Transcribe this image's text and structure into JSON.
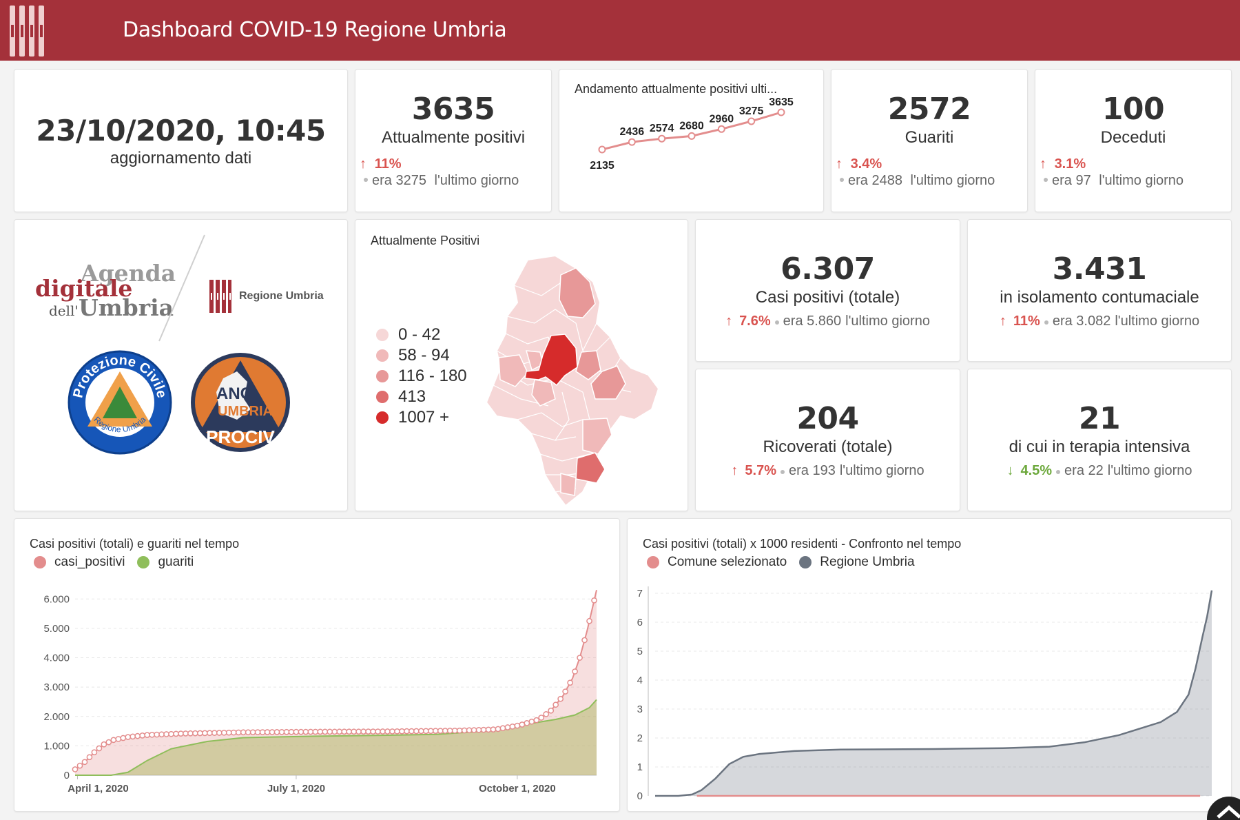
{
  "header": {
    "title": "Dashboard COVID-19 Regione Umbria"
  },
  "update": {
    "datetime": "23/10/2020, 10:45",
    "label": "aggiornamento dati"
  },
  "kpis": {
    "positivi": {
      "value": "3635",
      "label": "Attualmente positivi",
      "delta": "11%",
      "prev": "era 3275",
      "period": "l'ultimo giorno"
    },
    "guariti": {
      "value": "2572",
      "label": "Guariti",
      "delta": "3.4%",
      "prev": "era 2488",
      "period": "l'ultimo giorno"
    },
    "deceduti": {
      "value": "100",
      "label": "Deceduti",
      "delta": "3.1%",
      "prev": "era 97",
      "period": "l'ultimo giorno"
    },
    "casi_totale": {
      "value": "6.307",
      "label": "Casi positivi (totale)",
      "delta": "7.6%",
      "prev": "era 5.860",
      "period": "l'ultimo giorno"
    },
    "isolamento": {
      "value": "3.431",
      "label": "in isolamento contumaciale",
      "delta": "11%",
      "prev": "era 3.082",
      "period": "l'ultimo giorno"
    },
    "ricoverati": {
      "value": "204",
      "label": "Ricoverati (totale)",
      "delta": "5.7%",
      "prev": "era 193",
      "period": "l'ultimo giorno"
    },
    "terapia": {
      "value": "21",
      "label": "di cui in terapia intensiva",
      "delta": "4.5%",
      "prev": "era 22",
      "period": "l'ultimo giorno"
    }
  },
  "trend": {
    "title": "Andamento attualmente positivi ulti...",
    "values": [
      2135,
      2436,
      2574,
      2680,
      2960,
      3275,
      3635
    ],
    "labels": [
      "2135",
      "2436",
      "2574",
      "2680",
      "2960",
      "3275",
      "3635"
    ]
  },
  "logos": {
    "agenda": {
      "line1": "Agenda",
      "line2": "digitale",
      "line3a": "dell'",
      "line3b": "Umbria"
    },
    "regione": "Regione Umbria",
    "protezione": {
      "top": "Protezione Civile",
      "bottom": "Regione Umbria"
    },
    "anci": {
      "line1": "ANCI",
      "line2": "UMBRIA",
      "line3": "PROCIV"
    }
  },
  "map": {
    "title": "Attualmente Positivi",
    "legend": [
      {
        "label": "0 - 42",
        "color": "#f6d7d7"
      },
      {
        "label": "58 - 94",
        "color": "#f0b9b9"
      },
      {
        "label": "116 - 180",
        "color": "#e79898"
      },
      {
        "label": "413",
        "color": "#df6d6d"
      },
      {
        "label": "1007 +",
        "color": "#d62b2b"
      }
    ]
  },
  "chart_data": [
    {
      "type": "area",
      "title": "Casi positivi (totali) e guariti nel tempo",
      "series": [
        {
          "name": "casi_positivi",
          "color": "#e38d8d",
          "points": [
            [
              0,
              200
            ],
            [
              4,
              450
            ],
            [
              8,
              780
            ],
            [
              12,
              1050
            ],
            [
              16,
              1200
            ],
            [
              22,
              1300
            ],
            [
              30,
              1370
            ],
            [
              45,
              1420
            ],
            [
              70,
              1460
            ],
            [
              100,
              1480
            ],
            [
              130,
              1490
            ],
            [
              160,
              1520
            ],
            [
              175,
              1560
            ],
            [
              185,
              1700
            ],
            [
              193,
              1900
            ],
            [
              198,
              2200
            ],
            [
              203,
              2700
            ],
            [
              207,
              3300
            ],
            [
              210,
              4000
            ],
            [
              213,
              4900
            ],
            [
              215,
              5600
            ],
            [
              217,
              6307
            ]
          ]
        },
        {
          "name": "guariti",
          "color": "#8fbe5b",
          "points": [
            [
              0,
              0
            ],
            [
              15,
              0
            ],
            [
              22,
              100
            ],
            [
              30,
              500
            ],
            [
              40,
              900
            ],
            [
              55,
              1150
            ],
            [
              70,
              1280
            ],
            [
              100,
              1330
            ],
            [
              130,
              1360
            ],
            [
              150,
              1390
            ],
            [
              170,
              1500
            ],
            [
              185,
              1700
            ],
            [
              200,
              1900
            ],
            [
              208,
              2050
            ],
            [
              214,
              2300
            ],
            [
              217,
              2572
            ]
          ]
        }
      ],
      "x_ticks": [
        "April 1, 2020",
        "July 1, 2020",
        "October 1, 2020"
      ],
      "y_ticks": [
        "0",
        "1.000",
        "2.000",
        "3.000",
        "4.000",
        "5.000",
        "6.000"
      ],
      "ylim": [
        0,
        6500
      ]
    },
    {
      "type": "area",
      "title": "Casi positivi (totali) x 1000 residenti - Confronto nel tempo",
      "series": [
        {
          "name": "Comune selezionato",
          "color": "#e38d8d",
          "points": [
            [
              18,
              0
            ],
            [
              235,
              0
            ]
          ]
        },
        {
          "name": "Regione Umbria",
          "color": "#6b7480",
          "points": [
            [
              0,
              0
            ],
            [
              10,
              0
            ],
            [
              16,
              0.05
            ],
            [
              20,
              0.2
            ],
            [
              26,
              0.6
            ],
            [
              32,
              1.1
            ],
            [
              38,
              1.35
            ],
            [
              45,
              1.45
            ],
            [
              60,
              1.55
            ],
            [
              80,
              1.6
            ],
            [
              120,
              1.62
            ],
            [
              150,
              1.65
            ],
            [
              170,
              1.7
            ],
            [
              185,
              1.85
            ],
            [
              200,
              2.1
            ],
            [
              210,
              2.35
            ],
            [
              218,
              2.55
            ],
            [
              225,
              2.9
            ],
            [
              230,
              3.5
            ],
            [
              233,
              4.4
            ],
            [
              236,
              5.5
            ],
            [
              238,
              6.2
            ],
            [
              240,
              7.1
            ]
          ]
        }
      ],
      "y_ticks": [
        "0",
        "1",
        "2",
        "3",
        "4",
        "5",
        "6",
        "7"
      ],
      "ylim": [
        0,
        7
      ]
    }
  ]
}
